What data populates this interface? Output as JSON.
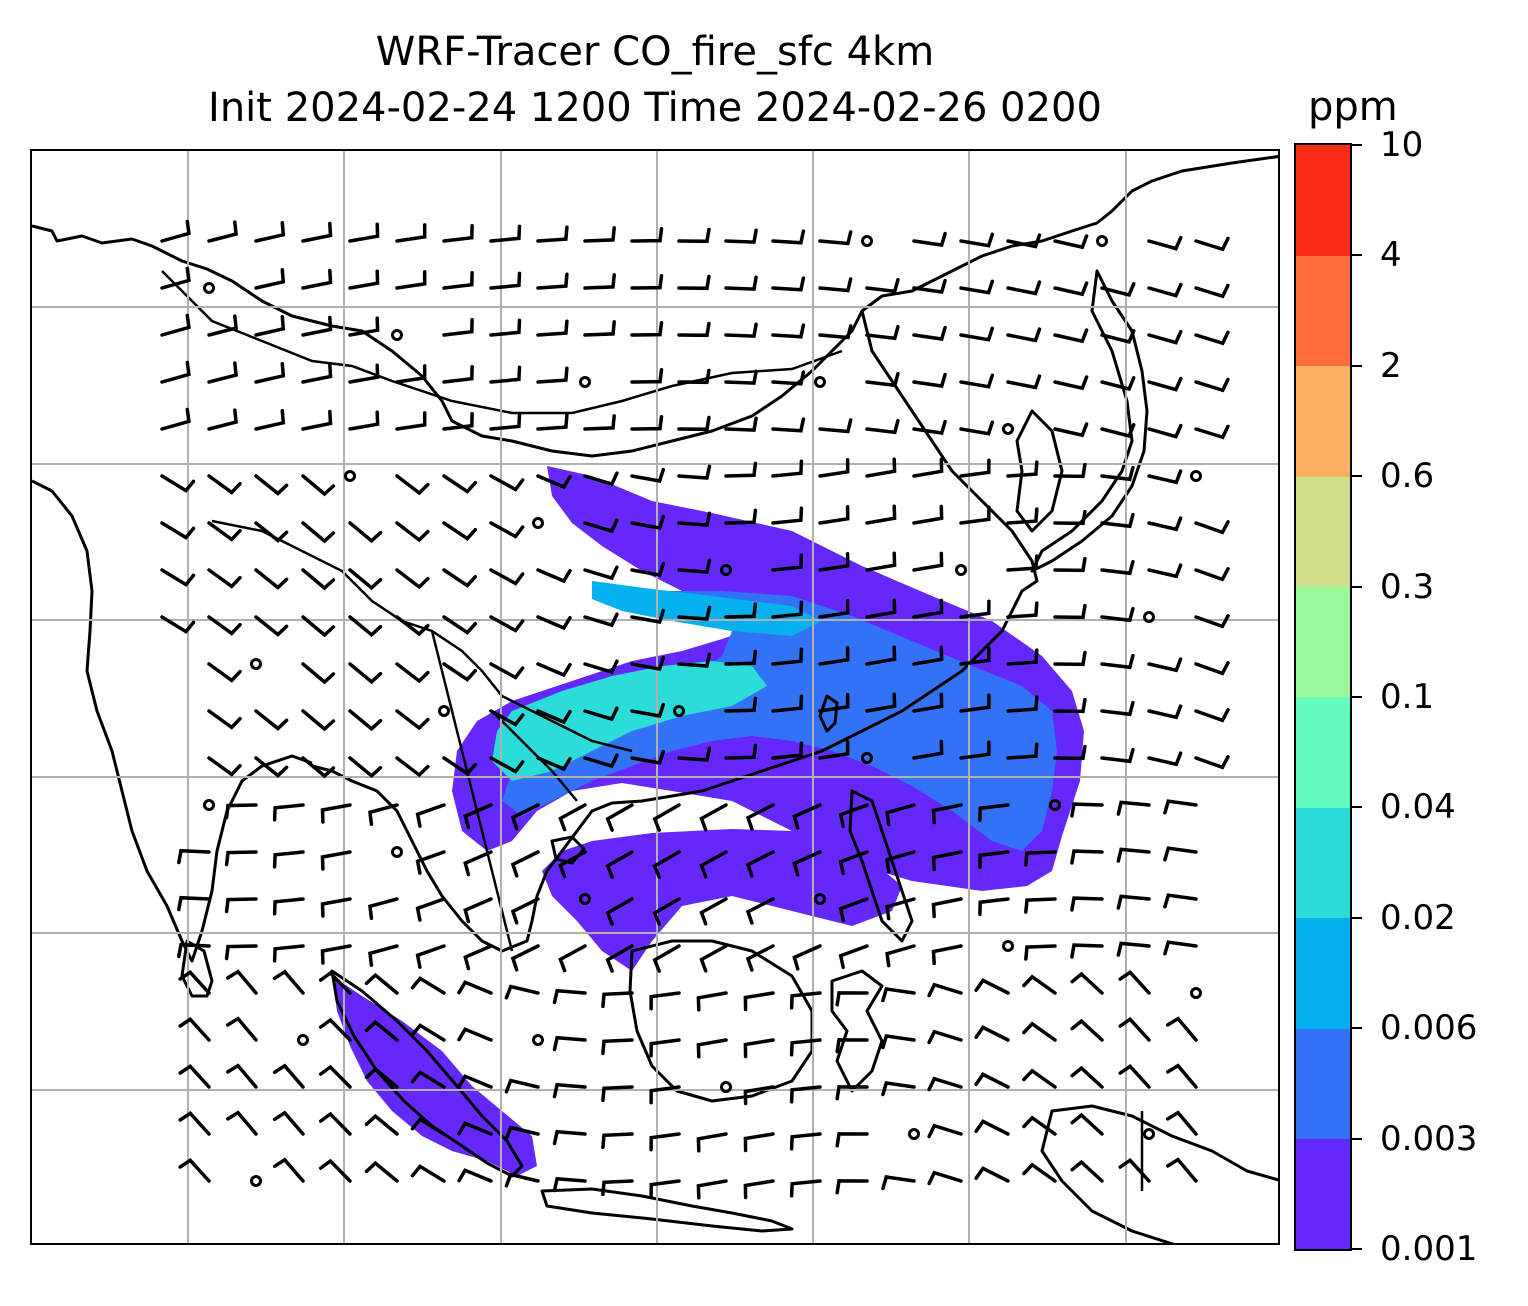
{
  "title_line1": "WRF-Tracer CO_fire_sfc 4km",
  "title_line2": "Init 2024-02-24 1200 Time 2024-02-26 0200",
  "colorbar": {
    "unit": "ppm",
    "tick_labels": [
      "0.001",
      "0.003",
      "0.006",
      "0.02",
      "0.04",
      "0.1",
      "0.3",
      "0.6",
      "2",
      "4",
      "10"
    ],
    "colors": [
      "#6428fa",
      "#3272f6",
      "#04b0ee",
      "#2cdcd8",
      "#66fcbe",
      "#9af998",
      "#cfe08a",
      "#fdb062",
      "#fd6e3c",
      "#fb2c14"
    ]
  },
  "map": {
    "grid": "on",
    "features": [
      "coastlines",
      "country-borders",
      "wind-barbs",
      "CO-fire-tracer-plume"
    ]
  }
}
